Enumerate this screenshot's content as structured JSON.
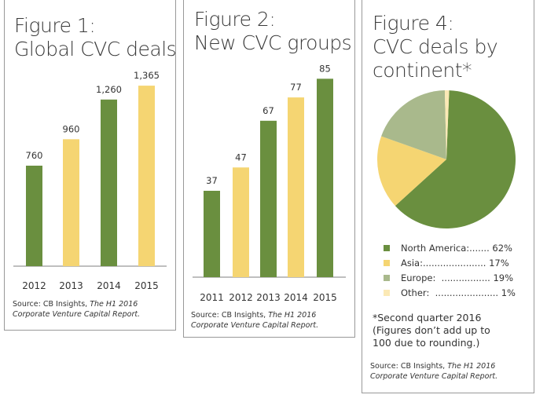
{
  "chart_data": [
    {
      "type": "bar",
      "title": "Figure 1: Global CVC deals",
      "title_lines": [
        "Figure 1:",
        "Global CVC deals"
      ],
      "categories": [
        "2012",
        "2013",
        "2014",
        "2015"
      ],
      "values": [
        760,
        960,
        1260,
        1365
      ],
      "value_labels": [
        "760",
        "960",
        "1,260",
        "1,365"
      ],
      "colors": [
        "#6a8f3f",
        "#f5d572",
        "#6a8f3f",
        "#f5d572"
      ],
      "source": "Source: CB Insights,",
      "source_italic": "The H1 2016",
      "source_line2": "Corporate Venture Capital Report."
    },
    {
      "type": "bar",
      "title": "Figure 2: New CVC groups",
      "title_lines": [
        "Figure 2:",
        "New CVC groups"
      ],
      "categories": [
        "2011",
        "2012",
        "2013",
        "2014",
        "2015"
      ],
      "values": [
        37,
        47,
        67,
        77,
        85
      ],
      "value_labels": [
        "37",
        "47",
        "67",
        "77",
        "85"
      ],
      "colors": [
        "#6a8f3f",
        "#f5d572",
        "#6a8f3f",
        "#f5d572",
        "#6a8f3f"
      ],
      "source": "Source: CB Insights,",
      "source_italic": "The H1 2016",
      "source_line2": "Corporate Venture Capital Report."
    },
    {
      "type": "pie",
      "title": "Figure 4: CVC deals by continent*",
      "title_lines": [
        "Figure 4:",
        "CVC deals by",
        "continent*"
      ],
      "slices": [
        {
          "label": "North America:",
          "dots": " .......",
          "value": 62,
          "color": "#6a8f3f"
        },
        {
          "label": "Asia:",
          "dots": "......................",
          "value": 17,
          "color": "#f5d572"
        },
        {
          "label": "Europe:",
          "dots": "  .................",
          "value": 19,
          "color": "#a9b98c"
        },
        {
          "label": "Other:",
          "dots": "  ......................",
          "value": 1,
          "color": "#fbe9b5"
        }
      ],
      "note": [
        "*Second quarter 2016",
        "(Figures don’t add up to",
        "100 due to rounding.)"
      ],
      "source": "Source: CB Insights,",
      "source_italic": "The H1 2016",
      "source_line2": "Corporate Venture Capital Report."
    }
  ]
}
